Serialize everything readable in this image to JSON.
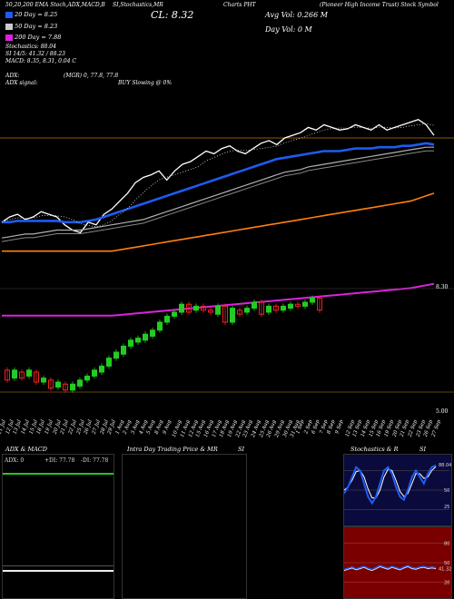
{
  "header": {
    "line1": "50,20,200 EMA Stoch,ADX,MACD,B",
    "line1b": "SI,Stochastics,MR",
    "line1c": "(Pioneer High Income Trust) Stock Symbol",
    "ticker": "PHT",
    "charts_label": "Charts",
    "close_label": "CL: 8.32",
    "ema20": "20 Day = 8.25",
    "ema50": "50 Day = 8.23",
    "ema200": "200 Day = 7.88",
    "stoch_line": "Stochastics: 88.04",
    "si_line": "SI 14/5: 41.32 / 88.23",
    "macd_line": "MACD: 8.35, 8.31, 0.04 C",
    "avg_vol": "Avg Vol: 0.266  M",
    "day_vol": "Day Vol: 0   M",
    "adx_label": "ADX:",
    "adx_signal_label": "ADX signal:",
    "adx_value": "(MGR) 0, 77.8, 77.8",
    "buy_text": "BUY Slowing @ 0%"
  },
  "colors": {
    "price_line": "#ffffff",
    "ema20": "#1e5cf0",
    "ema50": "#b0b0b0",
    "ema200": "#ff7f0e",
    "band_magenta": "#dd22dd",
    "candle_up": "#22cc22",
    "candle_down": "#ee2222",
    "orange_ref": "#8b5a00"
  },
  "chart_data": [
    {
      "type": "line",
      "x": [
        "11 Jul",
        "12 Jul",
        "13 Jul",
        "14 Jul",
        "15 Jul",
        "18 Jul",
        "19 Jul",
        "20 Jul",
        "21 Jul",
        "22 Jul",
        "25 Jul",
        "26 Jul",
        "27 Jul",
        "28 Jul",
        "29 Jul",
        "1 Aug",
        "2 Aug",
        "3 Aug",
        "4 Aug",
        "5 Aug",
        "8 Aug",
        "9 Aug",
        "10 Aug",
        "11 Aug",
        "12 Aug",
        "15 Aug",
        "16 Aug",
        "17 Aug",
        "18 Aug",
        "19 Aug",
        "22 Aug",
        "23 Aug",
        "24 Aug",
        "25 Aug",
        "26 Aug",
        "29 Aug",
        "30 Aug",
        "31 Aug",
        "1 Sep",
        "2 Sep",
        "6 Sep",
        "7 Sep",
        "8 Sep",
        "9 Sep",
        "12 Sep",
        "13 Sep",
        "14 Sep",
        "15 Sep",
        "16 Sep",
        "19 Sep",
        "20 Sep",
        "21 Sep",
        "22 Sep",
        "23 Sep",
        "26 Sep",
        "27 Sep"
      ],
      "series": [
        {
          "values": [
            7.66,
            7.7,
            7.72,
            7.68,
            7.7,
            7.74,
            7.72,
            7.7,
            7.64,
            7.6,
            7.58,
            7.66,
            7.64,
            7.72,
            7.76,
            7.82,
            7.88,
            7.96,
            8.0,
            8.02,
            8.05,
            7.98,
            8.05,
            8.1,
            8.12,
            8.16,
            8.2,
            8.18,
            8.22,
            8.24,
            8.2,
            8.18,
            8.22,
            8.26,
            8.28,
            8.25,
            8.3,
            8.32,
            8.34,
            8.38,
            8.36,
            8.4,
            8.38,
            8.36,
            8.37,
            8.4,
            8.38,
            8.36,
            8.4,
            8.36,
            8.38,
            8.4,
            8.42,
            8.44,
            8.4,
            8.32
          ]
        },
        {
          "values": [
            7.66,
            7.66,
            7.67,
            7.67,
            7.67,
            7.67,
            7.67,
            7.67,
            7.66,
            7.66,
            7.66,
            7.67,
            7.68,
            7.7,
            7.72,
            7.74,
            7.76,
            7.78,
            7.8,
            7.82,
            7.84,
            7.86,
            7.88,
            7.9,
            7.92,
            7.94,
            7.96,
            7.98,
            8.0,
            8.02,
            8.04,
            8.06,
            8.08,
            8.1,
            8.12,
            8.14,
            8.15,
            8.16,
            8.17,
            8.18,
            8.19,
            8.2,
            8.2,
            8.2,
            8.21,
            8.22,
            8.22,
            8.22,
            8.23,
            8.23,
            8.23,
            8.24,
            8.24,
            8.25,
            8.26,
            8.25
          ]
        },
        {
          "values": [
            7.54,
            7.55,
            7.56,
            7.57,
            7.57,
            7.58,
            7.59,
            7.6,
            7.6,
            7.6,
            7.6,
            7.61,
            7.62,
            7.63,
            7.64,
            7.65,
            7.66,
            7.67,
            7.68,
            7.7,
            7.72,
            7.74,
            7.76,
            7.78,
            7.8,
            7.82,
            7.84,
            7.86,
            7.88,
            7.9,
            7.92,
            7.94,
            7.96,
            7.98,
            8.0,
            8.02,
            8.04,
            8.05,
            8.06,
            8.08,
            8.09,
            8.1,
            8.11,
            8.12,
            8.13,
            8.14,
            8.15,
            8.16,
            8.17,
            8.18,
            8.19,
            8.2,
            8.21,
            8.22,
            8.23,
            8.23
          ]
        },
        {
          "values": [
            7.44,
            7.44,
            7.44,
            7.44,
            7.44,
            7.44,
            7.44,
            7.44,
            7.44,
            7.44,
            7.44,
            7.44,
            7.44,
            7.44,
            7.44,
            7.45,
            7.46,
            7.47,
            7.48,
            7.49,
            7.5,
            7.51,
            7.52,
            7.53,
            7.54,
            7.55,
            7.56,
            7.57,
            7.58,
            7.59,
            7.6,
            7.61,
            7.62,
            7.63,
            7.64,
            7.65,
            7.66,
            7.67,
            7.68,
            7.69,
            7.7,
            7.71,
            7.72,
            7.73,
            7.74,
            7.75,
            7.76,
            7.77,
            7.78,
            7.79,
            7.8,
            7.81,
            7.82,
            7.84,
            7.86,
            7.88
          ]
        }
      ]
    },
    {
      "type": "bar",
      "candles": [
        {
          "o": 7.72,
          "c": 7.62
        },
        {
          "o": 7.64,
          "c": 7.72
        },
        {
          "o": 7.7,
          "c": 7.64
        },
        {
          "o": 7.66,
          "c": 7.72
        },
        {
          "o": 7.7,
          "c": 7.6
        },
        {
          "o": 7.6,
          "c": 7.64
        },
        {
          "o": 7.62,
          "c": 7.54
        },
        {
          "o": 7.55,
          "c": 7.6
        },
        {
          "o": 7.58,
          "c": 7.52
        },
        {
          "o": 7.52,
          "c": 7.58
        },
        {
          "o": 7.56,
          "c": 7.62
        },
        {
          "o": 7.62,
          "c": 7.66
        },
        {
          "o": 7.66,
          "c": 7.72
        },
        {
          "o": 7.7,
          "c": 7.76
        },
        {
          "o": 7.76,
          "c": 7.84
        },
        {
          "o": 7.84,
          "c": 7.9
        },
        {
          "o": 7.88,
          "c": 7.96
        },
        {
          "o": 7.96,
          "c": 8.02
        },
        {
          "o": 8.0,
          "c": 8.04
        },
        {
          "o": 8.02,
          "c": 8.08
        },
        {
          "o": 8.06,
          "c": 8.12
        },
        {
          "o": 8.12,
          "c": 8.2
        },
        {
          "o": 8.2,
          "c": 8.26
        },
        {
          "o": 8.26,
          "c": 8.3
        },
        {
          "o": 8.3,
          "c": 8.38
        },
        {
          "o": 8.38,
          "c": 8.3
        },
        {
          "o": 8.32,
          "c": 8.36
        },
        {
          "o": 8.36,
          "c": 8.32
        },
        {
          "o": 8.32,
          "c": 8.3
        },
        {
          "o": 8.28,
          "c": 8.36
        },
        {
          "o": 8.36,
          "c": 8.2
        },
        {
          "o": 8.2,
          "c": 8.34
        },
        {
          "o": 8.32,
          "c": 8.28
        },
        {
          "o": 8.3,
          "c": 8.34
        },
        {
          "o": 8.34,
          "c": 8.4
        },
        {
          "o": 8.4,
          "c": 8.28
        },
        {
          "o": 8.3,
          "c": 8.36
        },
        {
          "o": 8.36,
          "c": 8.32
        },
        {
          "o": 8.32,
          "c": 8.36
        },
        {
          "o": 8.34,
          "c": 8.38
        },
        {
          "o": 8.38,
          "c": 8.36
        },
        {
          "o": 8.36,
          "c": 8.4
        },
        {
          "o": 8.4,
          "c": 8.44
        },
        {
          "o": 8.44,
          "c": 8.32
        }
      ],
      "y_tick_top": "8.30",
      "y_tick_bottom": "5.00"
    },
    {
      "type": "bar",
      "title": "ADX  & MACD",
      "labels": [
        "ADX: 0",
        "+DI: 77.78",
        "-DI: 77.78"
      ]
    },
    {
      "type": "table",
      "title": "Intra  Day Trading Price  & MR",
      "right_label": "SI"
    },
    {
      "type": "line",
      "title": "Stochastics & R",
      "right_label": "SI",
      "stoch_ticks": [
        "88.04",
        "50",
        "25"
      ],
      "si_ticks": [
        "80",
        "50",
        "41.32",
        "20"
      ],
      "stoch_fast": [
        45,
        55,
        70,
        85,
        80,
        60,
        40,
        30,
        40,
        60,
        80,
        85,
        75,
        55,
        40,
        35,
        50,
        70,
        80,
        70,
        60,
        75,
        85,
        88
      ],
      "stoch_slow": [
        50,
        55,
        65,
        78,
        80,
        70,
        52,
        38,
        38,
        50,
        70,
        82,
        80,
        65,
        48,
        40,
        45,
        60,
        75,
        75,
        68,
        70,
        80,
        86
      ],
      "si_values": [
        38,
        40,
        42,
        39,
        41,
        43,
        40,
        38,
        41,
        44,
        42,
        40,
        43,
        41,
        39,
        42,
        44,
        41,
        40,
        42,
        43,
        41,
        42,
        41
      ]
    }
  ]
}
